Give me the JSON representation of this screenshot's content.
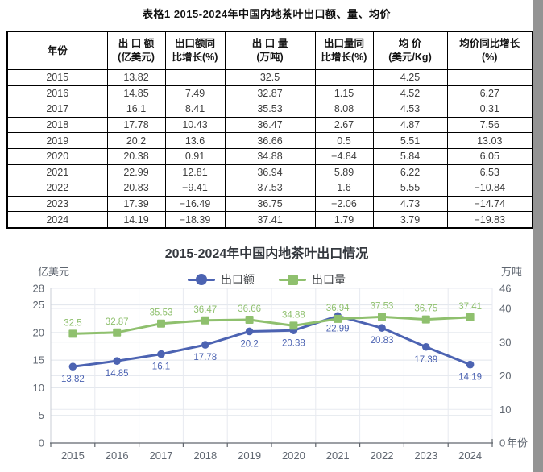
{
  "page": {
    "table_caption": "表格1 2015-2024年中国内地茶叶出口额、量、均价"
  },
  "table": {
    "columns": [
      {
        "lines": [
          "年份"
        ]
      },
      {
        "lines": [
          "出 口 额",
          "(亿美元)"
        ]
      },
      {
        "lines": [
          "出口额同",
          "比增长(%)"
        ]
      },
      {
        "lines": [
          "出 口 量",
          "(万吨)"
        ]
      },
      {
        "lines": [
          "出口量同",
          "比增长(%)"
        ]
      },
      {
        "lines": [
          "均 价",
          "(美元/Kg)"
        ]
      },
      {
        "lines": [
          "均价同比增长",
          "(%)"
        ]
      }
    ],
    "rows": [
      [
        "2015",
        "13.82",
        "",
        "32.5",
        "",
        "4.25",
        ""
      ],
      [
        "2016",
        "14.85",
        "7.49",
        "32.87",
        "1.15",
        "4.52",
        "6.27"
      ],
      [
        "2017",
        "16.1",
        "8.41",
        "35.53",
        "8.08",
        "4.53",
        "0.31"
      ],
      [
        "2018",
        "17.78",
        "10.43",
        "36.47",
        "2.67",
        "4.87",
        "7.56"
      ],
      [
        "2019",
        "20.2",
        "13.6",
        "36.66",
        "0.5",
        "5.51",
        "13.03"
      ],
      [
        "2020",
        "20.38",
        "0.91",
        "34.88",
        "−4.84",
        "5.84",
        "6.05"
      ],
      [
        "2021",
        "22.99",
        "12.81",
        "36.94",
        "5.89",
        "6.22",
        "6.53"
      ],
      [
        "2022",
        "20.83",
        "−9.41",
        "37.53",
        "1.6",
        "5.55",
        "−10.84"
      ],
      [
        "2023",
        "17.39",
        "−16.49",
        "36.75",
        "−2.06",
        "4.73",
        "−14.74"
      ],
      [
        "2024",
        "14.19",
        "−18.39",
        "37.41",
        "1.79",
        "3.79",
        "−19.83"
      ]
    ]
  },
  "chart_data": {
    "type": "line",
    "title": "2015-2024年中国内地茶叶出口情况",
    "categories": [
      "2015",
      "2016",
      "2017",
      "2018",
      "2019",
      "2020",
      "2021",
      "2022",
      "2023",
      "2024"
    ],
    "series": [
      {
        "name": "出口额",
        "axis": "left",
        "marker": "circle",
        "color": "#4c63b2",
        "values": [
          13.82,
          14.85,
          16.1,
          17.78,
          20.2,
          20.38,
          22.99,
          20.83,
          17.39,
          14.19
        ]
      },
      {
        "name": "出口量",
        "axis": "right",
        "marker": "square",
        "color": "#8fc06e",
        "values": [
          32.5,
          32.87,
          35.53,
          36.47,
          36.66,
          34.88,
          36.94,
          37.53,
          36.75,
          37.41
        ]
      }
    ],
    "left_axis": {
      "label": "亿美元",
      "ticks": [
        0,
        5,
        10,
        15,
        20,
        25,
        28
      ],
      "max": 28
    },
    "right_axis": {
      "label": "万吨",
      "ticks": [
        0,
        10,
        20,
        30,
        40,
        46
      ],
      "max": 46,
      "name": "年份"
    },
    "legend_position": "top-center",
    "grid": true,
    "point_labels": true
  }
}
